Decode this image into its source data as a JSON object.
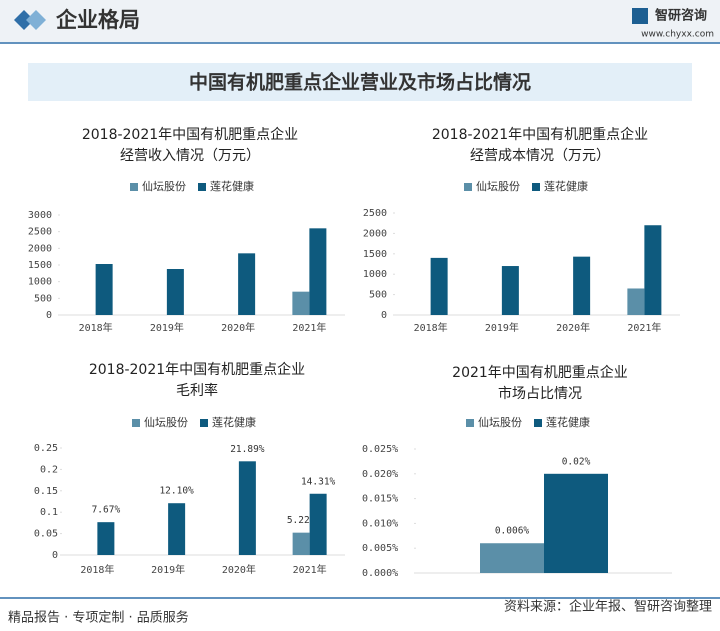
{
  "header": {
    "section": "企业格局",
    "brand": "智研咨询",
    "url": "www.chyxx.com"
  },
  "main_title": "中国有机肥重点企业营业及市场占比情况",
  "footer": {
    "left": "精品报告 · 专项定制 · 品质服务",
    "source": "资料来源：企业年报、智研咨询整理"
  },
  "chart_data": [
    {
      "type": "bar",
      "title": [
        "2018-2021年中国有机肥重点企业",
        "经营收入情况（万元）"
      ],
      "categories": [
        "2018年",
        "2019年",
        "2020年",
        "2021年"
      ],
      "series": [
        {
          "name": "仙坛股份",
          "color": "#5b8fa8",
          "values": [
            null,
            null,
            null,
            700
          ]
        },
        {
          "name": "莲花健康",
          "color": "#0e5a7e",
          "values": [
            1530,
            1380,
            1850,
            2600
          ]
        }
      ],
      "ylim": [
        0,
        3000
      ],
      "yticks": [
        0,
        500,
        1000,
        1500,
        2000,
        2500,
        3000
      ],
      "grid": false
    },
    {
      "type": "bar",
      "title": [
        "2018-2021年中国有机肥重点企业",
        "经营成本情况（万元）"
      ],
      "categories": [
        "2018年",
        "2019年",
        "2020年",
        "2021年"
      ],
      "series": [
        {
          "name": "仙坛股份",
          "color": "#5b8fa8",
          "values": [
            null,
            null,
            null,
            650
          ]
        },
        {
          "name": "莲花健康",
          "color": "#0e5a7e",
          "values": [
            1400,
            1200,
            1430,
            2200
          ]
        }
      ],
      "ylim": [
        0,
        2500
      ],
      "yticks": [
        0,
        500,
        1000,
        1500,
        2000,
        2500
      ],
      "grid": false
    },
    {
      "type": "bar",
      "title": [
        "2018-2021年中国有机肥重点企业",
        "毛利率"
      ],
      "categories": [
        "2018年",
        "2019年",
        "2020年",
        "2021年"
      ],
      "series": [
        {
          "name": "仙坛股份",
          "color": "#5b8fa8",
          "values": [
            null,
            null,
            null,
            0.0522
          ],
          "value_labels": [
            null,
            null,
            null,
            "5.22%"
          ]
        },
        {
          "name": "莲花健康",
          "color": "#0e5a7e",
          "values": [
            0.0767,
            0.121,
            0.2189,
            0.1431
          ],
          "value_labels": [
            "7.67%",
            "12.10%",
            "21.89%",
            "14.31%"
          ]
        }
      ],
      "ylim": [
        0,
        0.25
      ],
      "yticks": [
        0,
        0.05,
        0.1,
        0.15,
        0.2,
        0.25
      ],
      "grid": false
    },
    {
      "type": "bar",
      "title": [
        "2021年中国有机肥重点企业",
        "市场占比情况"
      ],
      "categories": [
        null
      ],
      "series": [
        {
          "name": "仙坛股份",
          "color": "#5b8fa8",
          "values": [
            0.006
          ],
          "value_labels": [
            "0.006%"
          ]
        },
        {
          "name": "莲花健康",
          "color": "#0e5a7e",
          "values": [
            0.02
          ],
          "value_labels": [
            "0.02%"
          ]
        }
      ],
      "ylim": [
        0,
        0.025
      ],
      "yticks": [
        {
          "value": 0,
          "label": "0.000%"
        },
        {
          "value": 0.005,
          "label": "0.005%"
        },
        {
          "value": 0.01,
          "label": "0.010%"
        },
        {
          "value": 0.015,
          "label": "0.015%"
        },
        {
          "value": 0.02,
          "label": "0.020%"
        },
        {
          "value": 0.025,
          "label": "0.025%"
        }
      ],
      "grid": false
    }
  ]
}
